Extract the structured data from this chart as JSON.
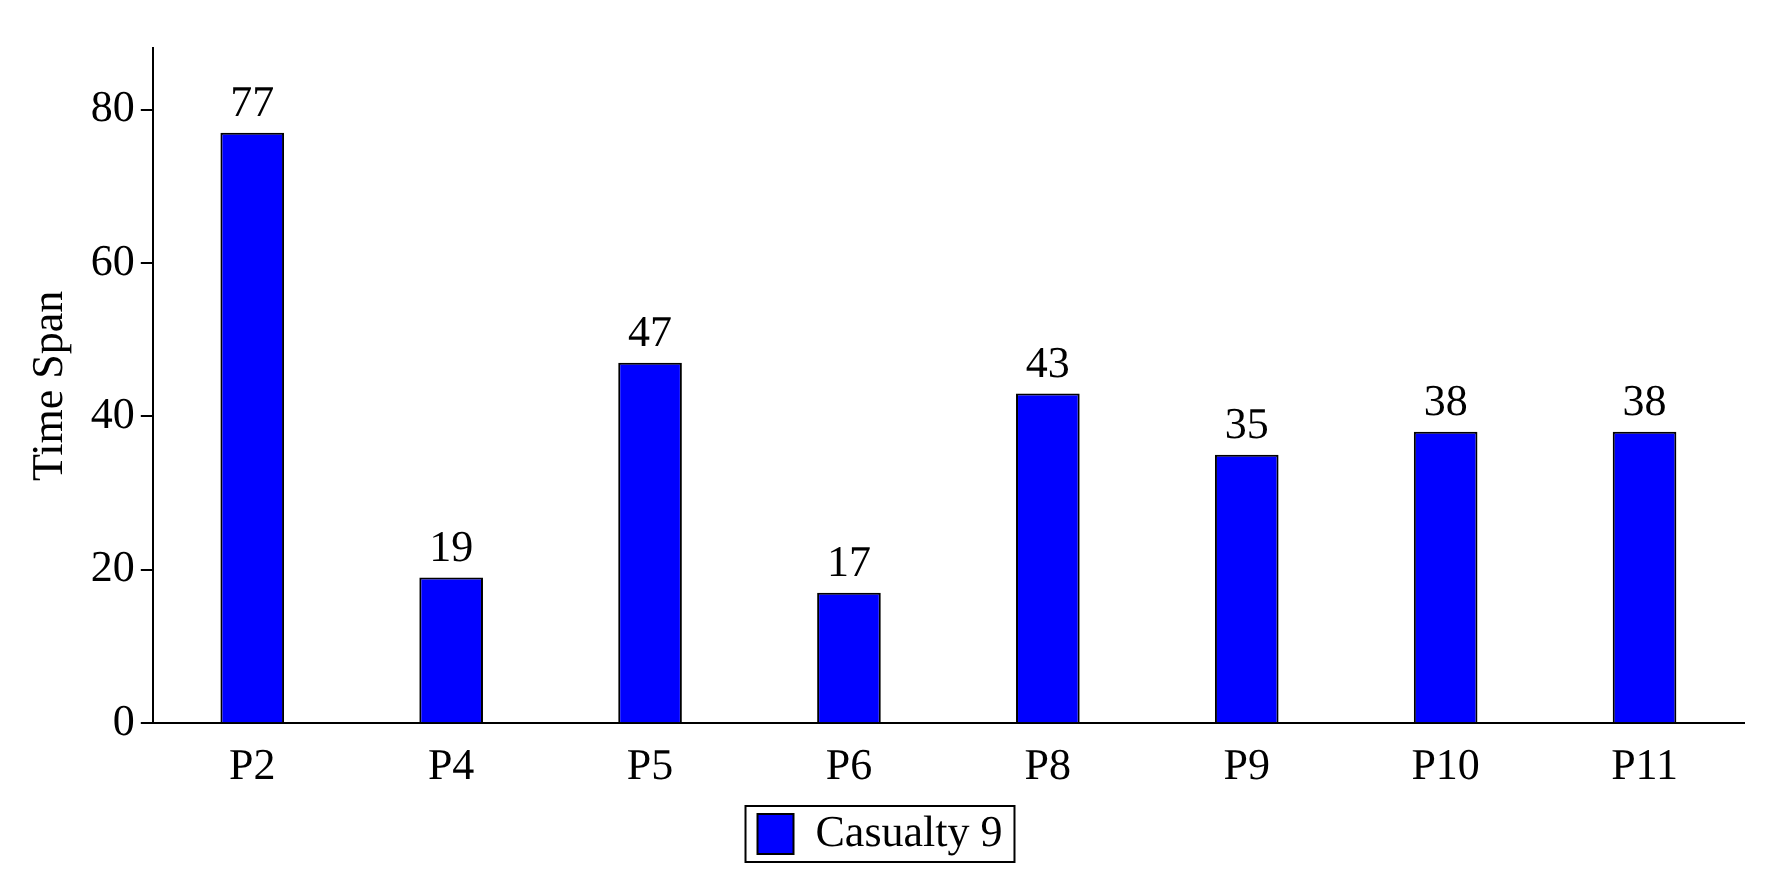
{
  "chart_data": {
    "type": "bar",
    "ylabel": "Time Span",
    "categories": [
      "P2",
      "P4",
      "P5",
      "P6",
      "P8",
      "P9",
      "P10",
      "P11"
    ],
    "series": [
      {
        "name": "Casualty 9",
        "color": "#0000ff",
        "values": [
          77,
          19,
          47,
          17,
          43,
          35,
          38,
          38
        ]
      }
    ],
    "ylim": [
      0,
      88
    ],
    "yticks": [
      0,
      20,
      40,
      60,
      80
    ],
    "grid": false,
    "legend": "bottom",
    "data_labels": true
  }
}
